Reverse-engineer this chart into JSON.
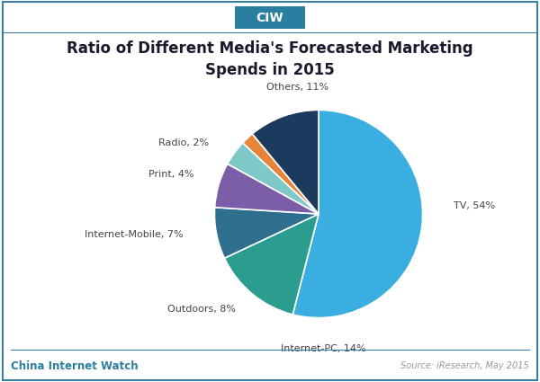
{
  "title": "Ratio of Different Media's Forecasted Marketing\nSpends in 2015",
  "labels": [
    "TV",
    "Internet-PC",
    "Outdoors",
    "Internet-Mobile",
    "Print",
    "Radio",
    "Others"
  ],
  "values": [
    54,
    14,
    8,
    7,
    4,
    2,
    11
  ],
  "colors": [
    "#3aaee0",
    "#2a9d8f",
    "#2e6e8e",
    "#7b5ea7",
    "#7ec8c8",
    "#e8843a",
    "#1b3a5c"
  ],
  "label_format": [
    "TV, 54%",
    "Internet-PC, 14%",
    "Outdoors, 8%",
    "Internet-Mobile, 7%",
    "Print, 4%",
    "Radio, 2%",
    "Others, 11%"
  ],
  "startangle": 90,
  "ciw_box_color": "#2a7fa0",
  "ciw_text": "CIW",
  "bottom_left_text": "China Internet Watch",
  "bottom_right_text": "Source: iResearch, May 2015",
  "background_color": "#ffffff",
  "border_color": "#3a7fa0",
  "title_fontsize": 12,
  "label_fontsize": 8,
  "footer_left_color": "#2a7fa0",
  "footer_right_color": "#999999"
}
